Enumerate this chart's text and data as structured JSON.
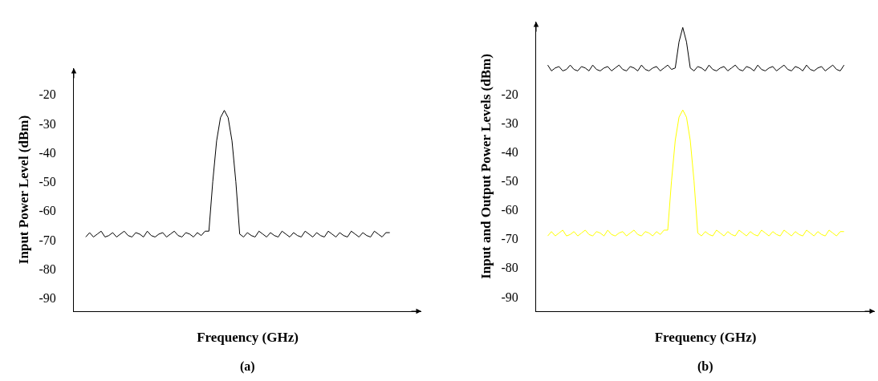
{
  "chart_data": [
    {
      "type": "line",
      "xlabel": "Frequency (GHz)",
      "ylabel": "Input Power Level (dBm)",
      "annotations": [
        "(a)"
      ],
      "categories": [
        null,
        null,
        null,
        null,
        null,
        null,
        null,
        null,
        null,
        null,
        null,
        null,
        null,
        null,
        null,
        null,
        null,
        null,
        null,
        null,
        null,
        null,
        null,
        null,
        null,
        null,
        null,
        null,
        null,
        null,
        null,
        null,
        null,
        null,
        null,
        null,
        null,
        null,
        null,
        null,
        null,
        null,
        null,
        null,
        null,
        null,
        null,
        null,
        null,
        null,
        null,
        null,
        null,
        null,
        null,
        null,
        null,
        null,
        null,
        null,
        null,
        null,
        null,
        null,
        null,
        null,
        null,
        null,
        null,
        null,
        null,
        null,
        null,
        null,
        null,
        null,
        null,
        null,
        null,
        null
      ],
      "series": [
        {
          "color": "#000000",
          "values": [
            -69,
            -67.5,
            -69,
            -68,
            -67,
            -69,
            -68.5,
            -67.5,
            -69,
            -68,
            -67,
            -68.5,
            -69,
            -67.5,
            -68,
            -69,
            -67,
            -68.5,
            -69,
            -68,
            -67.5,
            -69,
            -68,
            -67,
            -68.5,
            -69,
            -67.5,
            -68,
            -69,
            -67.5,
            -68.5,
            -67,
            -67,
            -50,
            -36,
            -28,
            -25.5,
            -28,
            -36,
            -50,
            -68,
            -69,
            -67.5,
            -68.5,
            -69,
            -67,
            -68,
            -69,
            -67.5,
            -68.5,
            -69,
            -67,
            -68,
            -69,
            -67.5,
            -68.5,
            -69,
            -67,
            -68,
            -69,
            -67.5,
            -68.5,
            -69,
            -67,
            -68,
            -69,
            -67.5,
            -68.5,
            -69,
            -67,
            -68,
            -69,
            -67.5,
            -68.5,
            -69,
            -67,
            -68,
            -69,
            -67.5,
            -67.5
          ]
        }
      ],
      "ylim": [
        -94.5,
        -11
      ],
      "yticks": [
        -20,
        -30,
        -40,
        -50,
        -60,
        -70,
        -80,
        -90
      ],
      "tick_labels": "y"
    },
    {
      "type": "line",
      "xlabel": "Frequency (GHz)",
      "ylabel": "Input and Output Power Levels (dBm)",
      "annotations": [
        "(b)"
      ],
      "categories": [
        null,
        null,
        null,
        null,
        null,
        null,
        null,
        null,
        null,
        null,
        null,
        null,
        null,
        null,
        null,
        null,
        null,
        null,
        null,
        null,
        null,
        null,
        null,
        null,
        null,
        null,
        null,
        null,
        null,
        null,
        null,
        null,
        null,
        null,
        null,
        null,
        null,
        null,
        null,
        null,
        null,
        null,
        null,
        null,
        null,
        null,
        null,
        null,
        null,
        null,
        null,
        null,
        null,
        null,
        null,
        null,
        null,
        null,
        null,
        null,
        null,
        null,
        null,
        null,
        null,
        null,
        null,
        null,
        null,
        null,
        null,
        null,
        null,
        null,
        null,
        null,
        null,
        null,
        null,
        null
      ],
      "series": [
        {
          "color": "#000000",
          "values": [
            -10,
            -12,
            -11,
            -10.5,
            -12,
            -11.5,
            -10,
            -11.5,
            -12,
            -10.5,
            -11,
            -12,
            -10,
            -11.5,
            -12,
            -11,
            -10.5,
            -12,
            -11,
            -10,
            -11.5,
            -12,
            -10.5,
            -11,
            -12,
            -10,
            -11.5,
            -12,
            -11,
            -10.5,
            -12,
            -11,
            -10,
            -11.5,
            -11,
            -2,
            3,
            -2,
            -11,
            -12,
            -10.5,
            -11,
            -12,
            -10,
            -11.5,
            -12,
            -11,
            -10.5,
            -12,
            -11,
            -10,
            -11.5,
            -12,
            -10.5,
            -11,
            -12,
            -10,
            -11.5,
            -12,
            -11,
            -10.5,
            -12,
            -11,
            -10,
            -11.5,
            -12,
            -10.5,
            -11,
            -12,
            -10,
            -11.5,
            -12,
            -11,
            -10.5,
            -12,
            -11,
            -10,
            -11.5,
            -12,
            -10
          ]
        },
        {
          "color": "#ffff00",
          "values": [
            -69,
            -67.5,
            -69,
            -68,
            -67,
            -69,
            -68.5,
            -67.5,
            -69,
            -68,
            -67,
            -68.5,
            -69,
            -67.5,
            -68,
            -69,
            -67,
            -68.5,
            -69,
            -68,
            -67.5,
            -69,
            -68,
            -67,
            -68.5,
            -69,
            -67.5,
            -68,
            -69,
            -67.5,
            -68.5,
            -67,
            -67,
            -50,
            -36,
            -28,
            -25.5,
            -28,
            -36,
            -50,
            -68,
            -69,
            -67.5,
            -68.5,
            -69,
            -67,
            -68,
            -69,
            -67.5,
            -68.5,
            -69,
            -67,
            -68,
            -69,
            -67.5,
            -68.5,
            -69,
            -67,
            -68,
            -69,
            -67.5,
            -68.5,
            -69,
            -67,
            -68,
            -69,
            -67.5,
            -68.5,
            -69,
            -67,
            -68,
            -69,
            -67.5,
            -68.5,
            -69,
            -67,
            -68,
            -69,
            -67.5,
            -67.5
          ]
        }
      ],
      "ylim": [
        -95,
        5
      ],
      "yticks": [
        -20,
        -30,
        -40,
        -50,
        -60,
        -70,
        -80,
        -90
      ],
      "tick_labels": "y"
    }
  ]
}
